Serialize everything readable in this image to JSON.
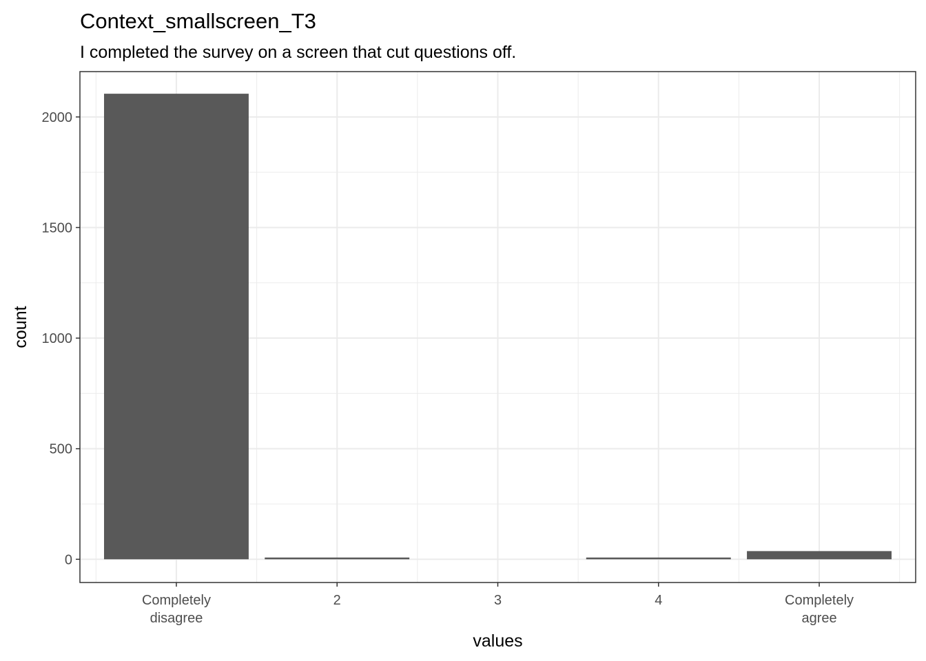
{
  "chart_data": {
    "type": "bar",
    "title": "Context_smallscreen_T3",
    "subtitle": "I completed the survey on a screen that cut questions off.",
    "xlabel": "values",
    "ylabel": "count",
    "categories": [
      [
        "Completely",
        "disagree"
      ],
      [
        "2"
      ],
      [
        "3"
      ],
      [
        "4"
      ],
      [
        "Completely",
        "agree"
      ]
    ],
    "values": [
      2105,
      8,
      0,
      8,
      37
    ],
    "ylim": [
      -105,
      2205
    ],
    "yticks": [
      0,
      500,
      1000,
      1500,
      2000
    ],
    "yticks_minor": [
      250,
      750,
      1250,
      1750
    ],
    "grid": true,
    "bar_color": "#595959",
    "grid_color": "#ebebeb",
    "axis_color": "#333333"
  }
}
